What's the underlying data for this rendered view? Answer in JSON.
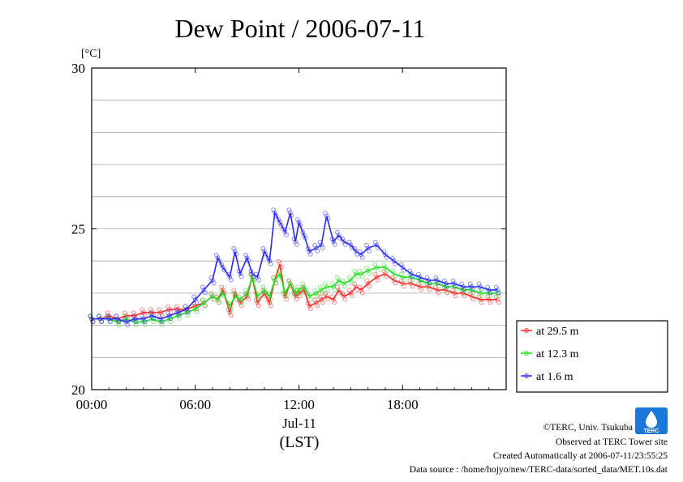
{
  "colors": {
    "series_29_5": "#ff2a2a",
    "series_12_3": "#22dd22",
    "series_1_6": "#2a2aff",
    "grid": "#a8a8a8",
    "logo": "#1a78d8"
  },
  "logo": {
    "icon": "terc-logo",
    "text": "TERC"
  },
  "credits": [
    "©TERC, Univ. Tsukuba",
    "Observed at TERC Tower site",
    "Created Automatically at 2006-07-11/23:55:25",
    "Data source : /home/hojyo/new/TERC-data/sorted_data/MET.10s.dat"
  ],
  "chart_data": {
    "type": "line",
    "title": "Dew Point / 2006-07-11",
    "ylabel": "[°C]",
    "xlabel": "(LST)",
    "date_label": "Jul-11",
    "x_unit": "hour of day",
    "xlim": [
      0,
      24
    ],
    "ylim": [
      20,
      30
    ],
    "x_ticks": [
      0,
      6,
      12,
      18
    ],
    "x_tick_labels": [
      "00:00",
      "06:00",
      "12:00",
      "18:00"
    ],
    "y_ticks": [
      20,
      25,
      30
    ],
    "y_tick_labels": [
      "20",
      "25",
      "30"
    ],
    "grid": true,
    "legend_position": "right",
    "series": [
      {
        "name": "at 29.5 m",
        "x": [
          0,
          0.5,
          1,
          1.5,
          2,
          2.5,
          3,
          3.5,
          4,
          4.5,
          5,
          5.5,
          6,
          6.5,
          7,
          7.3,
          7.6,
          8,
          8.3,
          8.6,
          9,
          9.3,
          9.6,
          10,
          10.3,
          10.6,
          10.9,
          11.2,
          11.5,
          11.8,
          12,
          12.3,
          12.6,
          13,
          13.3,
          13.6,
          14,
          14.3,
          14.6,
          15,
          15.3,
          15.6,
          16,
          16.5,
          17,
          17.5,
          18,
          18.5,
          19,
          19.5,
          20,
          20.5,
          21,
          21.5,
          22,
          22.5,
          23,
          23.5
        ],
        "values": [
          22.2,
          22.2,
          22.3,
          22.2,
          22.3,
          22.3,
          22.4,
          22.4,
          22.4,
          22.5,
          22.5,
          22.5,
          22.6,
          22.7,
          22.9,
          22.8,
          23.1,
          22.4,
          23.0,
          22.7,
          22.9,
          23.5,
          22.7,
          23.0,
          22.7,
          23.4,
          23.9,
          22.9,
          23.3,
          22.9,
          23.0,
          23.1,
          22.6,
          22.7,
          22.8,
          22.9,
          22.8,
          23.1,
          22.9,
          23.0,
          23.2,
          23.1,
          23.3,
          23.5,
          23.6,
          23.4,
          23.3,
          23.3,
          23.2,
          23.2,
          23.1,
          23.1,
          23.0,
          23.0,
          22.9,
          22.8,
          22.8,
          22.8
        ]
      },
      {
        "name": "at 12.3 m",
        "x": [
          0,
          0.5,
          1,
          1.5,
          2,
          2.5,
          3,
          3.5,
          4,
          4.5,
          5,
          5.5,
          6,
          6.5,
          7,
          7.3,
          7.6,
          8,
          8.3,
          8.6,
          9,
          9.3,
          9.6,
          10,
          10.3,
          10.6,
          10.9,
          11.2,
          11.5,
          11.8,
          12,
          12.3,
          12.6,
          13,
          13.3,
          13.6,
          14,
          14.3,
          14.6,
          15,
          15.3,
          15.6,
          16,
          16.5,
          17,
          17.5,
          18,
          18.5,
          19,
          19.5,
          20,
          20.5,
          21,
          21.5,
          22,
          22.5,
          23,
          23.5
        ],
        "values": [
          22.2,
          22.2,
          22.2,
          22.1,
          22.2,
          22.1,
          22.1,
          22.2,
          22.1,
          22.2,
          22.3,
          22.4,
          22.5,
          22.7,
          22.9,
          22.8,
          23.0,
          22.6,
          22.9,
          22.8,
          23.0,
          23.5,
          22.9,
          23.1,
          22.9,
          23.4,
          23.6,
          23.0,
          23.3,
          23.0,
          23.1,
          23.2,
          22.9,
          23.0,
          23.1,
          23.2,
          23.2,
          23.4,
          23.3,
          23.4,
          23.6,
          23.6,
          23.7,
          23.8,
          23.8,
          23.6,
          23.5,
          23.5,
          23.4,
          23.3,
          23.3,
          23.2,
          23.2,
          23.1,
          23.1,
          23.0,
          23.0,
          23.0
        ]
      },
      {
        "name": "at 1.6 m",
        "x": [
          0,
          0.5,
          1,
          1.5,
          2,
          2.5,
          3,
          3.5,
          4,
          4.5,
          5,
          5.5,
          6,
          6.5,
          7,
          7.3,
          7.6,
          8,
          8.3,
          8.6,
          9,
          9.3,
          9.6,
          10,
          10.3,
          10.6,
          10.9,
          11.2,
          11.5,
          11.8,
          12,
          12.3,
          12.6,
          13,
          13.3,
          13.6,
          14,
          14.3,
          14.6,
          15,
          15.3,
          15.6,
          16,
          16.5,
          17,
          17.5,
          18,
          18.5,
          19,
          19.5,
          20,
          20.5,
          21,
          21.5,
          22,
          22.5,
          23,
          23.5
        ],
        "values": [
          22.2,
          22.2,
          22.2,
          22.2,
          22.1,
          22.2,
          22.2,
          22.3,
          22.2,
          22.3,
          22.4,
          22.5,
          22.8,
          23.1,
          23.4,
          24.1,
          23.8,
          23.5,
          24.3,
          23.6,
          24.1,
          23.6,
          23.5,
          24.3,
          24.0,
          25.5,
          25.2,
          24.9,
          25.5,
          24.6,
          25.2,
          24.8,
          24.3,
          24.4,
          24.5,
          25.4,
          24.6,
          24.8,
          24.6,
          24.5,
          24.3,
          24.2,
          24.4,
          24.5,
          24.2,
          24.0,
          23.8,
          23.6,
          23.5,
          23.4,
          23.4,
          23.3,
          23.3,
          23.2,
          23.2,
          23.2,
          23.1,
          23.1
        ]
      }
    ]
  }
}
